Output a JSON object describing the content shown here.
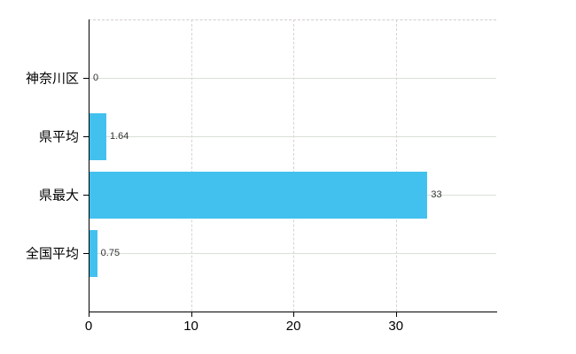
{
  "page": {
    "background": "#ffffff"
  },
  "chart_data": {
    "type": "bar",
    "orientation": "horizontal",
    "title": "",
    "xlabel": "",
    "ylabel": "",
    "categories": [
      "神奈川区",
      "県平均",
      "県最大",
      "全国平均"
    ],
    "values": [
      0,
      1.64,
      33,
      0.75
    ],
    "value_labels": [
      "0",
      "1.64",
      "33",
      "0.75"
    ],
    "xlim": [
      0,
      39.8
    ],
    "xticks": [
      0,
      10,
      20,
      30
    ],
    "xtick_labels": [
      "0",
      "10",
      "20",
      "30"
    ],
    "grid": true,
    "legend": false,
    "colors": {
      "bar": "#42c1ef",
      "axis": "#000000",
      "h_gridline": "#d9e0d6",
      "v_gridline": "#d8d2d8",
      "top_border": "#d2cbd2",
      "value_label": "#333333",
      "tick_label": "#000000"
    }
  }
}
